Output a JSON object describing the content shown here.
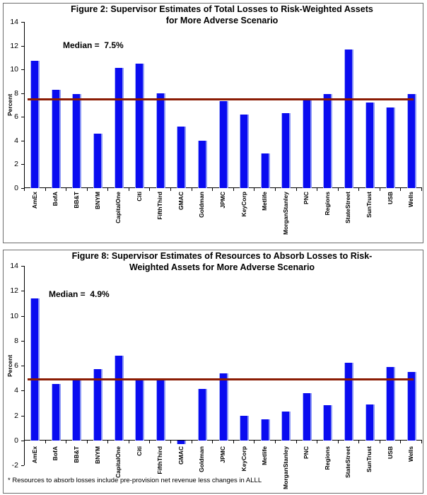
{
  "colors": {
    "bar": "#0a0cf0",
    "bar_highlight_edge": "#8d98f5",
    "median_line": "#8b1c04",
    "axis": "#000000",
    "panel_border": "#6e6e6e",
    "background": "#ffffff"
  },
  "chart_data": [
    {
      "type": "bar",
      "title": "Figure 2: Supervisor Estimates of Total Losses to Risk-Weighted Assets for More Adverse Scenario",
      "title_lines": [
        "Figure 2: Supervisor Estimates of Total Losses to Risk-Weighted Assets",
        "for More Adverse Scenario"
      ],
      "median_label": "Median =  7.5%",
      "median_value": 7.5,
      "xlabel": "",
      "ylabel": "Percent",
      "ylim": [
        0,
        14
      ],
      "yticks": [
        14,
        12,
        10,
        8,
        6,
        4,
        2,
        0
      ],
      "grid": false,
      "legend": false,
      "categories": [
        "AmEx",
        "BofA",
        "BB&T",
        "BNYM",
        "CapitalOne",
        "Citi",
        "FifthThird",
        "GMAC",
        "Goldman",
        "JPMC",
        "KeyCorp",
        "Metlife",
        "MorganStanley",
        "PNC",
        "Regions",
        "StateStreet",
        "SunTrust",
        "USB",
        "Wells"
      ],
      "values": [
        10.7,
        8.3,
        7.9,
        4.6,
        10.1,
        10.5,
        8.0,
        5.2,
        4.0,
        7.3,
        6.2,
        2.9,
        6.3,
        7.4,
        7.9,
        11.7,
        7.2,
        6.8,
        7.9
      ]
    },
    {
      "type": "bar",
      "title": "Figure 8: Supervisor Estimates of Resources to Absorb Losses to Risk-Weighted Assets for More Adverse Scenario",
      "title_lines": [
        "Figure 8: Supervisor Estimates of Resources to Absorb Losses to Risk-",
        "Weighted Assets for More Adverse Scenario"
      ],
      "median_label": "Median =  4.9%",
      "median_value": 4.9,
      "xlabel": "",
      "ylabel": "Percent",
      "ylim": [
        -2,
        14
      ],
      "yticks": [
        14,
        12,
        10,
        8,
        6,
        4,
        2,
        0,
        -2
      ],
      "grid": false,
      "legend": false,
      "categories": [
        "AmEx",
        "BofA",
        "BB&T",
        "BNYM",
        "CapitalOne",
        "Citi",
        "FifthThird",
        "GMAC",
        "Goldman",
        "JPMC",
        "KeyCorp",
        "Metlife",
        "MorganStanley",
        "PNC",
        "Regions",
        "StateStreet",
        "SunTrust",
        "USB",
        "Wells"
      ],
      "values": [
        11.4,
        4.5,
        5.0,
        5.7,
        6.8,
        4.8,
        4.8,
        -0.3,
        4.1,
        5.4,
        2.0,
        1.7,
        2.3,
        3.8,
        2.8,
        6.2,
        2.9,
        5.9,
        5.5
      ],
      "footnote": "* Resources to absorb losses include pre-provision net revenue less changes in ALLL"
    }
  ]
}
